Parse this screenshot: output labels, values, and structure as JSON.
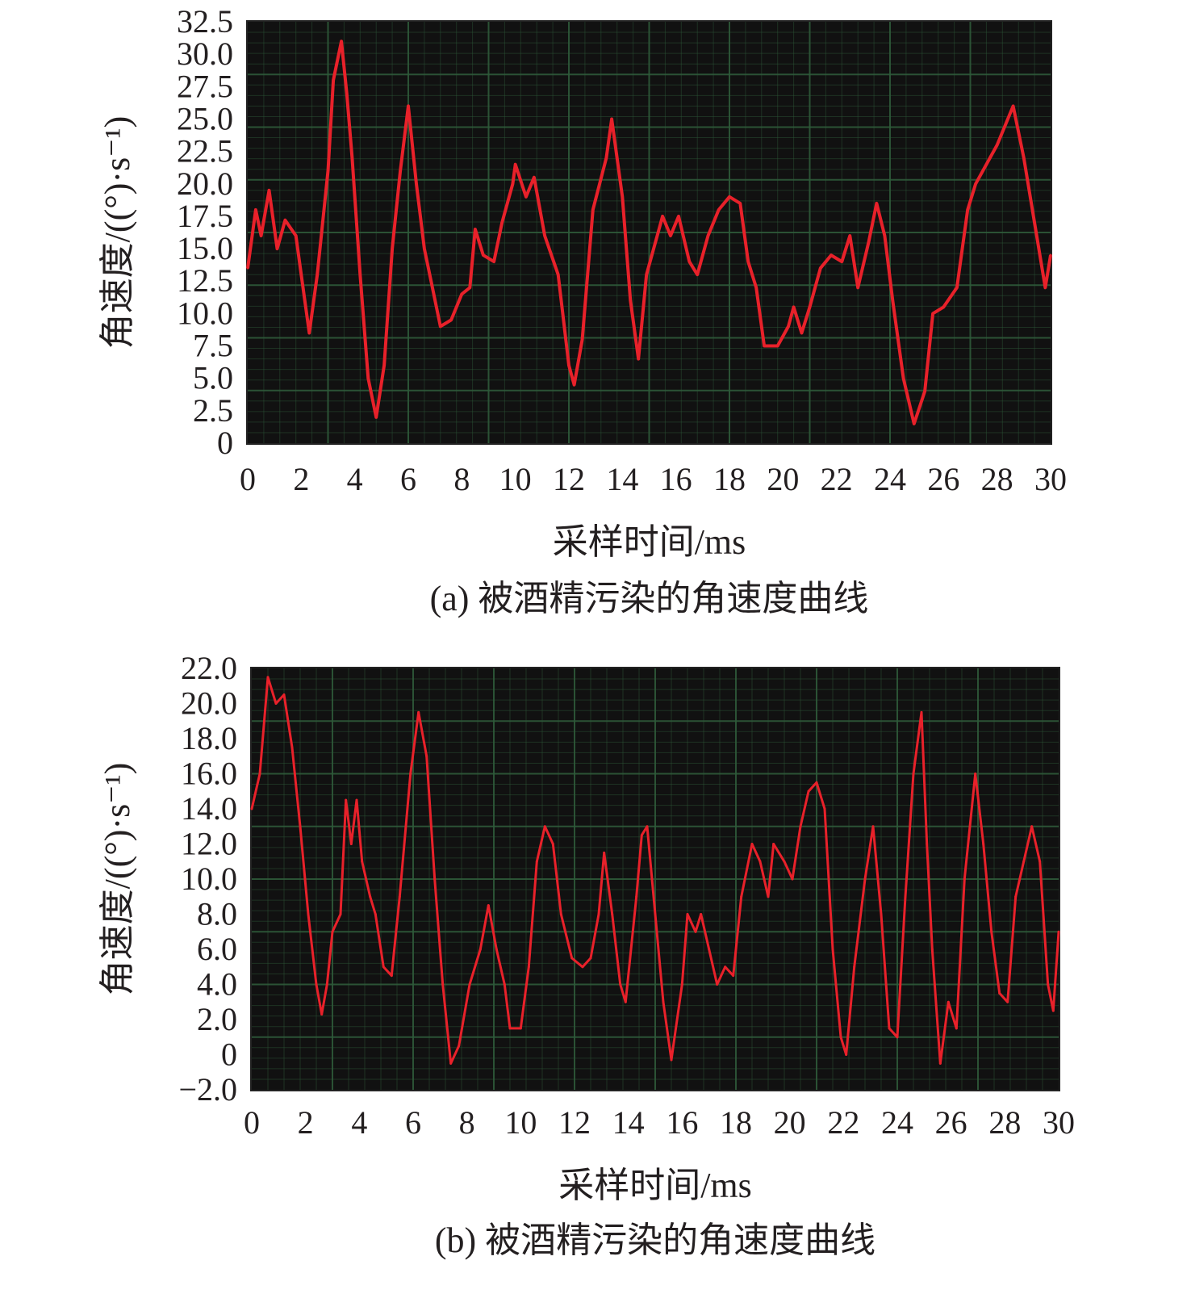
{
  "chart_data": [
    {
      "type": "line",
      "caption": "(a) 被酒精污染的角速度曲线",
      "xlabel": "采样时间/ms",
      "ylabel": "角速度/((°)·s⁻¹)",
      "xlim": [
        0,
        30
      ],
      "ylim": [
        0,
        32.5
      ],
      "xticks": [
        "0",
        "2",
        "4",
        "6",
        "8",
        "10",
        "12",
        "14",
        "16",
        "18",
        "20",
        "22",
        "24",
        "26",
        "28",
        "30"
      ],
      "yticks": [
        "0",
        "2.5",
        "5.0",
        "7.5",
        "10.0",
        "12.5",
        "15.0",
        "17.5",
        "20.0",
        "22.5",
        "25.0",
        "27.5",
        "30.0",
        "32.5"
      ],
      "grid": true,
      "background": "#111111",
      "grid_color": "#2e5a3a",
      "line_color": "#e8212a",
      "x": [
        0,
        0.3,
        0.5,
        0.8,
        1.1,
        1.4,
        1.8,
        2.0,
        2.3,
        2.6,
        3.0,
        3.2,
        3.5,
        3.7,
        3.9,
        4.2,
        4.5,
        4.8,
        5.1,
        5.4,
        5.7,
        6.0,
        6.3,
        6.6,
        6.9,
        7.2,
        7.6,
        8.0,
        8.3,
        8.5,
        8.8,
        9.2,
        9.5,
        9.9,
        10.0,
        10.4,
        10.7,
        11.1,
        11.6,
        12.0,
        12.2,
        12.5,
        12.9,
        13.4,
        13.6,
        14.0,
        14.3,
        14.6,
        14.9,
        15.3,
        15.5,
        15.8,
        16.1,
        16.5,
        16.8,
        17.2,
        17.6,
        18.0,
        18.4,
        18.7,
        19.0,
        19.3,
        19.8,
        20.2,
        20.4,
        20.7,
        21.0,
        21.4,
        21.8,
        22.2,
        22.5,
        22.8,
        23.2,
        23.5,
        23.8,
        24.1,
        24.5,
        24.9,
        25.3,
        25.6,
        26.0,
        26.5,
        26.9,
        27.2,
        28.0,
        28.6,
        29.0,
        29.4,
        29.8,
        30.0
      ],
      "y": [
        13.5,
        18,
        16,
        19.5,
        15,
        17.2,
        16,
        13,
        8.5,
        13,
        21,
        28,
        31,
        27,
        22,
        13,
        5,
        2,
        6,
        15,
        21,
        26,
        20,
        15,
        12,
        9,
        9.5,
        11.5,
        12,
        16.5,
        14.5,
        14,
        17,
        20,
        21.5,
        19,
        20.5,
        16,
        13,
        6,
        4.5,
        8,
        18,
        22,
        25,
        19,
        11,
        6.5,
        13,
        16,
        17.5,
        16,
        17.5,
        14,
        13,
        16,
        18,
        19,
        18.5,
        14,
        12,
        7.5,
        7.5,
        9,
        10.5,
        8.5,
        10.5,
        13.5,
        14.5,
        14,
        16,
        12,
        15.5,
        18.5,
        16,
        11,
        5,
        1.5,
        4,
        10,
        10.5,
        12,
        18,
        20,
        23,
        26,
        22,
        17,
        12,
        14.5
      ]
    },
    {
      "type": "line",
      "caption": "(b) 被酒精污染的角速度曲线",
      "xlabel": "采样时间/ms",
      "ylabel": "角速度/((°)·s⁻¹)",
      "xlim": [
        0,
        30
      ],
      "ylim": [
        -2.0,
        22.0
      ],
      "xticks": [
        "0",
        "2",
        "4",
        "6",
        "8",
        "10",
        "12",
        "14",
        "16",
        "18",
        "20",
        "22",
        "24",
        "26",
        "28",
        "30"
      ],
      "yticks": [
        "−2.0",
        "0",
        "2.0",
        "4.0",
        "6.0",
        "8.0",
        "10.0",
        "12.0",
        "14.0",
        "16.0",
        "18.0",
        "20.0",
        "22.0"
      ],
      "grid": true,
      "background": "#111111",
      "grid_color": "#2e5a3a",
      "line_color": "#e8212a",
      "x": [
        0,
        0.3,
        0.6,
        0.9,
        1.2,
        1.5,
        1.8,
        2.1,
        2.4,
        2.6,
        2.8,
        3.0,
        3.3,
        3.5,
        3.7,
        3.9,
        4.1,
        4.4,
        4.6,
        4.9,
        5.2,
        5.5,
        5.9,
        6.2,
        6.5,
        6.8,
        7.1,
        7.4,
        7.7,
        8.1,
        8.5,
        8.8,
        9.1,
        9.4,
        9.6,
        10.0,
        10.3,
        10.6,
        10.9,
        11.2,
        11.5,
        11.9,
        12.3,
        12.6,
        12.9,
        13.1,
        13.4,
        13.7,
        13.9,
        14.3,
        14.5,
        14.7,
        15.0,
        15.3,
        15.6,
        16.0,
        16.2,
        16.5,
        16.7,
        17.0,
        17.3,
        17.6,
        17.9,
        18.2,
        18.6,
        18.9,
        19.2,
        19.4,
        19.8,
        20.1,
        20.4,
        20.7,
        21.0,
        21.3,
        21.6,
        21.9,
        22.1,
        22.4,
        22.8,
        23.1,
        23.4,
        23.7,
        24.0,
        24.3,
        24.6,
        24.9,
        25.1,
        25.3,
        25.6,
        25.9,
        26.2,
        26.5,
        26.9,
        27.2,
        27.5,
        27.8,
        28.1,
        28.4,
        28.7,
        29.0,
        29.3,
        29.6,
        29.8,
        30.0
      ],
      "y": [
        14,
        16,
        21.5,
        20,
        20.5,
        17.5,
        13,
        8,
        4,
        2.3,
        4,
        7,
        8,
        14.5,
        12,
        14.5,
        11,
        9,
        8,
        5,
        4.5,
        9,
        16,
        19.5,
        17,
        10,
        4,
        -0.5,
        0.5,
        4,
        6,
        8.5,
        6,
        4,
        1.5,
        1.5,
        5,
        11,
        13,
        12,
        8,
        5.5,
        5,
        5.5,
        8,
        11.5,
        8,
        4,
        3,
        9,
        12.5,
        13,
        8,
        3,
        -0.3,
        4,
        8,
        7,
        8,
        6,
        4,
        5,
        4.5,
        9,
        12,
        11,
        9,
        12,
        11,
        10,
        13,
        15,
        15.5,
        14,
        6,
        1,
        0,
        5,
        10,
        13,
        8,
        1.5,
        1,
        9,
        16,
        19.5,
        12,
        6,
        -0.5,
        3,
        1.5,
        10,
        16,
        12,
        7,
        3.5,
        3,
        9,
        11,
        13,
        11,
        4,
        2.5,
        7
      ]
    }
  ]
}
